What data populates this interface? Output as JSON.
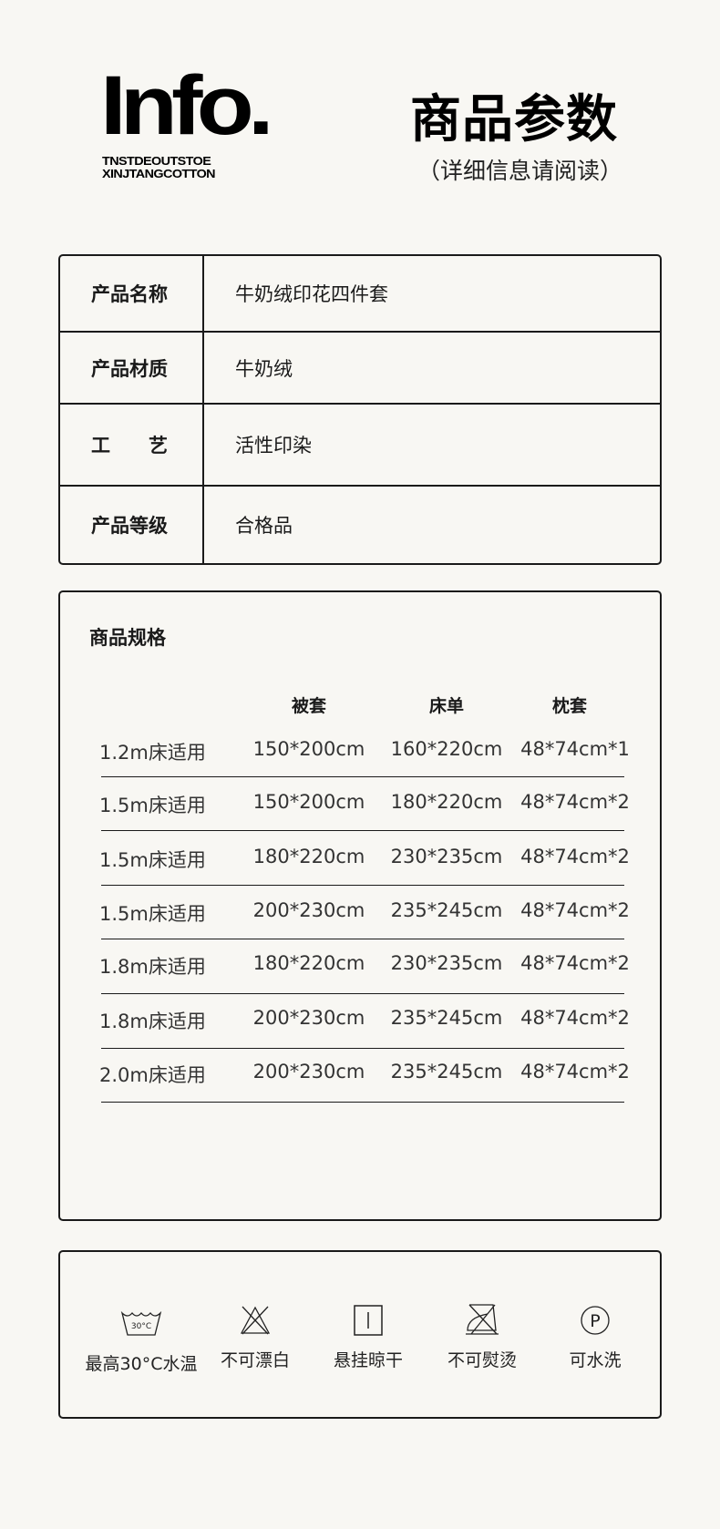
{
  "header": {
    "logo": "Info.",
    "sub1": "TNSTDEOUTSTOE",
    "sub2": "XINJTANGCOTTON",
    "title": "商品参数",
    "subtitle": "（详细信息请阅读）"
  },
  "info": [
    {
      "k": "产品名称",
      "v": "牛奶绒印花四件套"
    },
    {
      "k": "产品材质",
      "v": "牛奶绒"
    },
    {
      "k": "工　　艺",
      "v": "活性印染"
    },
    {
      "k": "产品等级",
      "v": "合格品"
    }
  ],
  "spec": {
    "title": "商品规格",
    "headers": [
      "被套",
      "床单",
      "枕套"
    ],
    "rows": [
      [
        "1.2m床适用",
        "150*200cm",
        "160*220cm",
        "48*74cm*1"
      ],
      [
        "1.5m床适用",
        "150*200cm",
        "180*220cm",
        "48*74cm*2"
      ],
      [
        "1.5m床适用",
        "180*220cm",
        "230*235cm",
        "48*74cm*2"
      ],
      [
        "1.5m床适用",
        "200*230cm",
        "235*245cm",
        "48*74cm*2"
      ],
      [
        "1.8m床适用",
        "180*220cm",
        "230*235cm",
        "48*74cm*2"
      ],
      [
        "1.8m床适用",
        "200*230cm",
        "235*245cm",
        "48*74cm*2"
      ],
      [
        "2.0m床适用",
        "200*230cm",
        "235*245cm",
        "48*74cm*2"
      ]
    ]
  },
  "care": [
    {
      "icon": "wash-30-icon",
      "label": "最高30°C水温",
      "temp": "30°C"
    },
    {
      "icon": "no-bleach-icon",
      "label": "不可漂白"
    },
    {
      "icon": "hang-dry-icon",
      "label": "悬挂晾干"
    },
    {
      "icon": "no-iron-icon",
      "label": "不可熨烫"
    },
    {
      "icon": "dry-clean-p-icon",
      "label": "可水洗",
      "glyph": "P"
    }
  ]
}
